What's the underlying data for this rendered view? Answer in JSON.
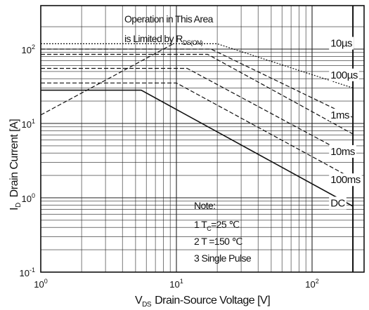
{
  "chart_data": {
    "type": "line",
    "title": "",
    "xlabel": {
      "symbol": "V",
      "sub": "DS",
      "text": "Drain-Source Voltage [V]"
    },
    "ylabel": {
      "symbol": "I",
      "sub": "D",
      "text": "Drain Current [A]"
    },
    "x_scale": "log",
    "y_scale": "log",
    "xlim": [
      1,
      300
    ],
    "ylim": [
      0.1,
      200
    ],
    "x_ticks": [
      {
        "value": 1,
        "base": "10",
        "exp": "0"
      },
      {
        "value": 10,
        "base": "10",
        "exp": "1"
      },
      {
        "value": 100,
        "base": "10",
        "exp": "2"
      }
    ],
    "y_ticks": [
      {
        "value": 0.1,
        "base": "10",
        "exp": "-1"
      },
      {
        "value": 1,
        "base": "10",
        "exp": "0"
      },
      {
        "value": 10,
        "base": "10",
        "exp": "1"
      },
      {
        "value": 100,
        "base": "10",
        "exp": "2"
      }
    ],
    "grid": true,
    "vds_max": 200,
    "rds_limit": [
      [
        1,
        13
      ],
      [
        9.5,
        118
      ]
    ],
    "series": [
      {
        "name": "10µs",
        "style": "dotted",
        "points": [
          [
            1,
            118
          ],
          [
            9.5,
            118
          ],
          [
            20,
            118
          ],
          [
            200,
            30
          ],
          [
            200,
            0.1
          ]
        ]
      },
      {
        "name": "100µs",
        "style": "dashed",
        "points": [
          [
            1,
            100
          ],
          [
            9.5,
            100
          ],
          [
            18,
            100
          ],
          [
            200,
            12
          ],
          [
            200,
            0.1
          ]
        ]
      },
      {
        "name": "1ms",
        "style": "dashed",
        "points": [
          [
            1,
            85
          ],
          [
            10,
            85
          ],
          [
            17,
            85
          ],
          [
            200,
            7.2
          ],
          [
            200,
            0.1
          ]
        ]
      },
      {
        "name": "10ms",
        "style": "dashed",
        "points": [
          [
            1,
            55
          ],
          [
            12,
            55
          ],
          [
            200,
            3.5
          ],
          [
            200,
            0.1
          ]
        ]
      },
      {
        "name": "100ms",
        "style": "dashed",
        "points": [
          [
            1,
            35
          ],
          [
            10,
            35
          ],
          [
            200,
            1.8
          ],
          [
            200,
            0.1
          ]
        ]
      },
      {
        "name": "DC",
        "style": "solid",
        "points": [
          [
            1,
            28
          ],
          [
            5.5,
            28
          ],
          [
            200,
            0.77
          ],
          [
            200,
            0.1
          ]
        ]
      }
    ],
    "series_labels": [
      {
        "text": "10µs",
        "x": 140,
        "y": 120
      },
      {
        "text": "100µs",
        "x": 140,
        "y": 45
      },
      {
        "text": "1ms",
        "x": 140,
        "y": 13
      },
      {
        "text": "10ms",
        "x": 140,
        "y": 4.2
      },
      {
        "text": "100ms",
        "x": 140,
        "y": 1.75
      },
      {
        "text": "DC",
        "x": 140,
        "y": 0.85
      }
    ],
    "annotation": {
      "line1": "Operation in This Area",
      "line2_prefix": "is Limited by R",
      "line2_sub": "DS(ON)"
    },
    "notes": {
      "title": "Note:",
      "item1_prefix": "1 T",
      "item1_sub": "C",
      "item1_suffix": "=25 ℃",
      "item2": "2 T =150 ℃",
      "item3": "3 Single Pulse"
    }
  }
}
